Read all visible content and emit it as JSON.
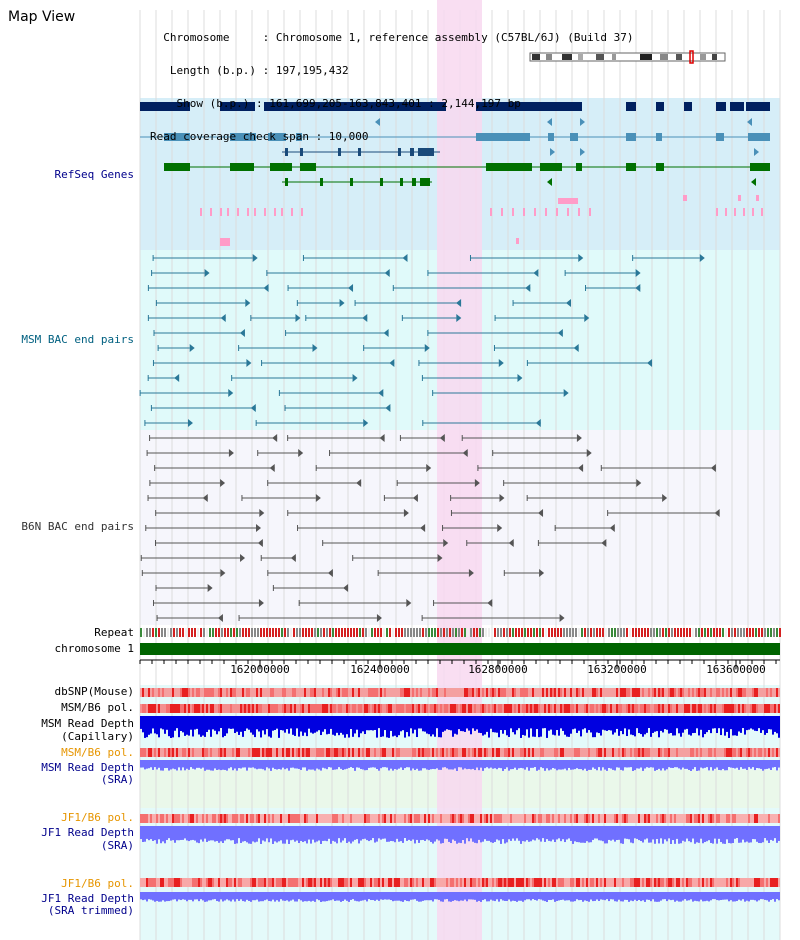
{
  "header": {
    "title": "Map View",
    "info_lines": [
      "  Chromosome     : Chromosome 1, reference assembly (C57BL/6J) (Build 37)",
      "   Length (b.p.) : 197,195,432",
      "    Show (b.p.) : 161,699,205-163,843,401 : 2,144,197 bp",
      "Read coverage check span : 10,000"
    ]
  },
  "tracks": {
    "refseq": "RefSeq Genes",
    "msm_bac": "MSM BAC end pairs",
    "b6n_bac": "B6N BAC end pairs",
    "repeat": "Repeat",
    "chromosome": "chromosome 1",
    "dbsnp": "dbSNP(Mouse)",
    "msm_b6_pol_1": "MSM/B6 pol.",
    "msm_depth_cap_1": "MSM Read Depth",
    "msm_depth_cap_2": "(Capillary)",
    "msm_b6_pol_2": "MSM/B6 pol.",
    "msm_depth_sra_1": "MSM Read Depth",
    "msm_depth_sra_2": "(SRA)",
    "jf1_b6_pol_1": "JF1/B6 pol.",
    "jf1_depth_1": "JF1 Read Depth",
    "jf1_depth_2": "(SRA)",
    "jf1_b6_pol_2": "JF1/B6 pol.",
    "jf1_depth_trim_1": "JF1 Read Depth",
    "jf1_depth_trim_2": "(SRA trimmed)"
  },
  "axis": {
    "ticks": [
      "162000000",
      "162400000",
      "162800000",
      "163200000",
      "163600000"
    ]
  },
  "colors": {
    "refseq_bg": "#d6eef8",
    "msm_bg": "#e0fafa",
    "highlight": "#f8d8f0",
    "navy": "#002060",
    "steel": "#4a90b8",
    "green": "#007000",
    "chromosome_bar": "#006400",
    "depth_blue": "#0000e0",
    "depth_light": "#7070ff",
    "pol_red": "#e83030"
  }
}
